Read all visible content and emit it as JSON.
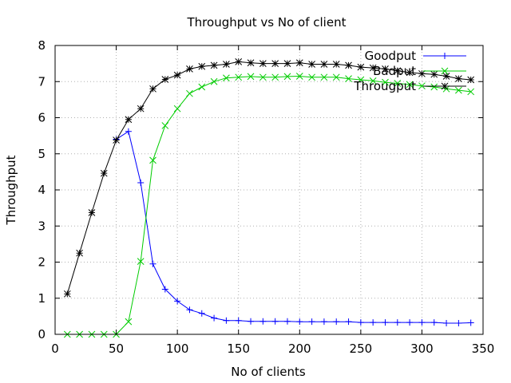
{
  "chart_data": {
    "type": "line",
    "title": "Throughput vs No of client",
    "xlabel": "No of clients",
    "ylabel": "Throughput",
    "xlim": [
      0,
      350
    ],
    "ylim": [
      0,
      8
    ],
    "xticks": [
      0,
      50,
      100,
      150,
      200,
      250,
      300,
      350
    ],
    "yticks": [
      0,
      1,
      2,
      3,
      4,
      5,
      6,
      7,
      8
    ],
    "grid": true,
    "legend_position": "top-right",
    "x": [
      10,
      20,
      30,
      40,
      50,
      60,
      70,
      80,
      90,
      100,
      110,
      120,
      130,
      140,
      150,
      160,
      170,
      180,
      190,
      200,
      210,
      220,
      230,
      240,
      250,
      260,
      270,
      280,
      290,
      300,
      310,
      320,
      330,
      340
    ],
    "series": [
      {
        "name": "Goodput",
        "color": "#0000ff",
        "marker": "plus",
        "values": [
          null,
          null,
          null,
          null,
          5.4,
          5.62,
          4.2,
          1.95,
          1.25,
          0.92,
          0.68,
          0.58,
          0.45,
          0.38,
          0.38,
          0.36,
          0.36,
          0.36,
          0.36,
          0.35,
          0.35,
          0.35,
          0.35,
          0.35,
          0.33,
          0.33,
          0.33,
          0.33,
          0.33,
          0.33,
          0.33,
          0.31,
          0.31,
          0.32
        ]
      },
      {
        "name": "Badput",
        "color": "#00cc00",
        "marker": "cross",
        "values": [
          0,
          0,
          0,
          0,
          0,
          0.35,
          2.02,
          4.82,
          5.78,
          6.25,
          6.67,
          6.85,
          7.0,
          7.1,
          7.12,
          7.14,
          7.12,
          7.12,
          7.14,
          7.15,
          7.12,
          7.12,
          7.12,
          7.08,
          7.05,
          7.02,
          6.98,
          6.95,
          6.92,
          6.88,
          6.85,
          6.8,
          6.76,
          6.72
        ]
      },
      {
        "name": "Througput",
        "color": "#000000",
        "marker": "star",
        "values": [
          1.12,
          2.25,
          3.37,
          4.46,
          5.38,
          5.95,
          6.25,
          6.8,
          7.06,
          7.18,
          7.35,
          7.42,
          7.45,
          7.48,
          7.55,
          7.52,
          7.5,
          7.5,
          7.5,
          7.52,
          7.48,
          7.48,
          7.48,
          7.45,
          7.4,
          7.38,
          7.35,
          7.3,
          7.25,
          7.22,
          7.2,
          7.15,
          7.08,
          7.05
        ]
      }
    ]
  }
}
